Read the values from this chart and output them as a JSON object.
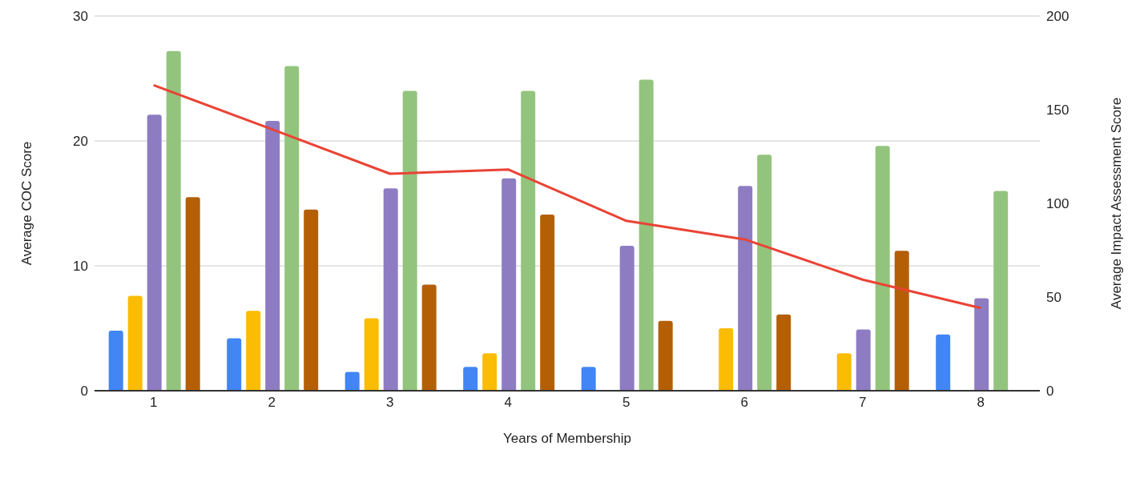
{
  "chart_data": {
    "type": "bar",
    "categories": [
      "1",
      "2",
      "3",
      "4",
      "5",
      "6",
      "7",
      "8"
    ],
    "xlabel": "Years of Membership",
    "ylabel": "Average COC Score",
    "y2label": "Average Impact Assessment Score",
    "ylim": [
      0,
      30
    ],
    "yticks": [
      0,
      10,
      20,
      30
    ],
    "y2lim": [
      0,
      200
    ],
    "y2ticks": [
      0,
      50,
      100,
      150,
      200
    ],
    "grid": "y",
    "legend": false,
    "series": [
      {
        "color": "#4285f4",
        "values": [
          4.8,
          4.2,
          1.5,
          1.9,
          1.9,
          null,
          null,
          4.5
        ]
      },
      {
        "color": "#fbbc04",
        "values": [
          7.6,
          6.4,
          5.8,
          3.0,
          null,
          5.0,
          3.0,
          null
        ]
      },
      {
        "color": "#8e7cc3",
        "values": [
          22.1,
          21.6,
          16.2,
          17.0,
          11.6,
          16.4,
          4.9,
          7.4
        ]
      },
      {
        "color": "#93c47d",
        "values": [
          27.2,
          26.0,
          24.0,
          24.0,
          24.9,
          18.9,
          19.6,
          16.0
        ]
      },
      {
        "color": "#b45f06",
        "values": [
          15.5,
          14.5,
          8.5,
          14.1,
          5.6,
          6.1,
          11.2,
          null
        ]
      },
      {
        "type": "line",
        "axis": "y2",
        "color": "#ea4335",
        "values": [
          163.1,
          139.6,
          115.8,
          118.1,
          90.7,
          80.8,
          59.3,
          44.1
        ]
      }
    ]
  }
}
